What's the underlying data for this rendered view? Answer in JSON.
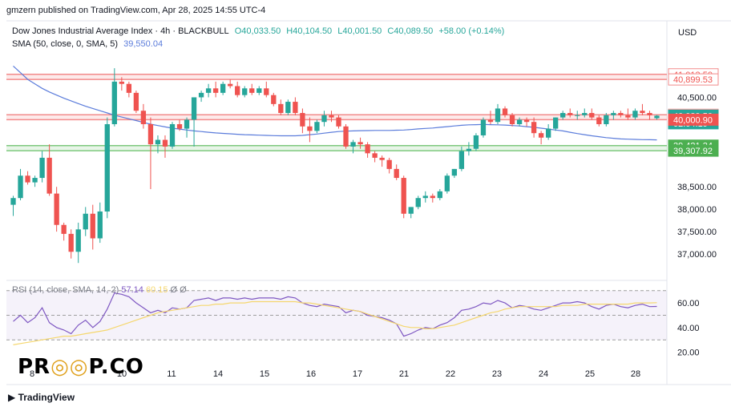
{
  "header": {
    "published": "gmzern published on TradingView.com, Apr 28, 2025 14:55 UTC-4",
    "symbol_line": "Dow Jones Industrial Average Index · 4h · BLACKBULL",
    "ohlc": {
      "o": "O40,033.50",
      "h": "H40,104.50",
      "l": "L40,001.50",
      "c": "C40,089.50",
      "chg": "+58.00 (+0.14%)"
    },
    "sma_line": "SMA (50, close, 0, SMA, 5)",
    "sma_value": "39,550.04",
    "currency": "USD"
  },
  "rsi_legend": {
    "label": "RSI (14, close, SMA, 14, 2)",
    "rsi": "57.14",
    "sma": "60.15",
    "extra": "Ø Ø"
  },
  "footer": {
    "tv": "TradingView",
    "brand_left": "PR",
    "brand_right": "P.CO"
  },
  "colors": {
    "up": "#26a69a",
    "down": "#ef5350",
    "sma": "#5b7cdb",
    "red_zone": "#f28b8b",
    "green_zone": "#7fc97f",
    "rsi": "#7e57c2",
    "rsi_sma": "#f5d76e"
  },
  "chart_data": [
    {
      "type": "candlestick",
      "title": "Dow Jones Industrial Average Index · 4h",
      "ylim": [
        36500,
        41600
      ],
      "y_ticks": [
        "37,000.00",
        "37,500.00",
        "38,000.00",
        "38,500.00",
        "40,500.00"
      ],
      "x_ticks": [
        "8",
        "10",
        "11",
        "14",
        "15",
        "16",
        "17",
        "21",
        "22",
        "23",
        "24",
        "25",
        "28"
      ],
      "price_labels": [
        {
          "text": "41,013.50",
          "value": 41013.5,
          "kind": "red"
        },
        {
          "text": "40,899.53",
          "value": 40899.53,
          "kind": "red"
        },
        {
          "text": "40,109.80",
          "value": 40109.8,
          "kind": "red"
        },
        {
          "text": "40,089.50",
          "value": 40089.5,
          "kind": "current"
        },
        {
          "text": "02:04:19",
          "value": 39920,
          "kind": "current-time"
        },
        {
          "text": "40,000.90",
          "value": 40000.9,
          "kind": "red-solid"
        },
        {
          "text": "39,421.34",
          "value": 39421.34,
          "kind": "green"
        },
        {
          "text": "39,307.92",
          "value": 39307.92,
          "kind": "green"
        }
      ],
      "zones": [
        {
          "from": 40899.53,
          "to": 41013.5,
          "color": "red"
        },
        {
          "from": 40000.9,
          "to": 40109.8,
          "color": "red"
        },
        {
          "from": 39307.92,
          "to": 39421.34,
          "color": "green"
        }
      ],
      "candles": [
        [
          38100,
          38300,
          37850,
          38250
        ],
        [
          38250,
          38900,
          38200,
          38750
        ],
        [
          38750,
          38850,
          38550,
          38600
        ],
        [
          38600,
          38750,
          38500,
          38700
        ],
        [
          38700,
          39300,
          38600,
          39150
        ],
        [
          39150,
          39450,
          38300,
          38350
        ],
        [
          38350,
          38500,
          37500,
          37650
        ],
        [
          37650,
          37700,
          37300,
          37450
        ],
        [
          37450,
          37550,
          36900,
          37050
        ],
        [
          37050,
          37700,
          36800,
          37550
        ],
        [
          37550,
          38050,
          37400,
          37900
        ],
        [
          37900,
          38100,
          37100,
          37350
        ],
        [
          37350,
          38150,
          37250,
          37950
        ],
        [
          37950,
          40050,
          37800,
          39900
        ],
        [
          39900,
          41150,
          39850,
          40850
        ],
        [
          40850,
          40950,
          40650,
          40800
        ],
        [
          40800,
          40850,
          40500,
          40600
        ],
        [
          40600,
          40650,
          40150,
          40200
        ],
        [
          40200,
          40350,
          39800,
          39900
        ],
        [
          39900,
          40050,
          38450,
          39450
        ],
        [
          39450,
          39650,
          39250,
          39550
        ],
        [
          39550,
          39650,
          39150,
          39400
        ],
        [
          39400,
          39950,
          39350,
          39900
        ],
        [
          39900,
          40000,
          39750,
          39800
        ],
        [
          39800,
          40050,
          39600,
          40000
        ],
        [
          40000,
          40500,
          39400,
          40500
        ],
        [
          40500,
          40650,
          40400,
          40600
        ],
        [
          40600,
          40800,
          40500,
          40700
        ],
        [
          40700,
          40850,
          40500,
          40600
        ],
        [
          40600,
          40850,
          40550,
          40800
        ],
        [
          40800,
          40900,
          40700,
          40750
        ],
        [
          40750,
          40850,
          40500,
          40550
        ],
        [
          40550,
          40750,
          40500,
          40700
        ],
        [
          40700,
          40800,
          40550,
          40600
        ],
        [
          40600,
          40750,
          40550,
          40700
        ],
        [
          40700,
          40850,
          40500,
          40550
        ],
        [
          40550,
          40600,
          40300,
          40350
        ],
        [
          40350,
          40450,
          40100,
          40150
        ],
        [
          40150,
          40450,
          40100,
          40400
        ],
        [
          40400,
          40500,
          40100,
          40150
        ],
        [
          40150,
          40250,
          39700,
          39850
        ],
        [
          39850,
          40050,
          39500,
          39750
        ],
        [
          39750,
          40000,
          39700,
          39950
        ],
        [
          39950,
          40200,
          39850,
          40100
        ],
        [
          40100,
          40200,
          39950,
          40050
        ],
        [
          40050,
          40100,
          39800,
          39850
        ],
        [
          39850,
          39900,
          39350,
          39400
        ],
        [
          39400,
          39550,
          39250,
          39500
        ],
        [
          39500,
          39600,
          39350,
          39450
        ],
        [
          39450,
          39500,
          39150,
          39250
        ],
        [
          39250,
          39300,
          39050,
          39150
        ],
        [
          39150,
          39200,
          38950,
          39100
        ],
        [
          39100,
          39150,
          38800,
          38900
        ],
        [
          38900,
          39000,
          38650,
          38700
        ],
        [
          38700,
          38750,
          37800,
          37900
        ],
        [
          37900,
          38050,
          37800,
          38050
        ],
        [
          38050,
          38300,
          38000,
          38250
        ],
        [
          38250,
          38400,
          38150,
          38300
        ],
        [
          38300,
          38350,
          38150,
          38250
        ],
        [
          38250,
          38450,
          38200,
          38400
        ],
        [
          38400,
          38800,
          38350,
          38750
        ],
        [
          38750,
          38900,
          38700,
          38900
        ],
        [
          38900,
          39400,
          38850,
          39300
        ],
        [
          39300,
          39500,
          39200,
          39350
        ],
        [
          39350,
          39700,
          39300,
          39650
        ],
        [
          39650,
          40050,
          39600,
          40000
        ],
        [
          40000,
          40200,
          39900,
          39950
        ],
        [
          39950,
          40350,
          39900,
          40250
        ],
        [
          40250,
          40300,
          40050,
          40100
        ],
        [
          40100,
          40150,
          39850,
          39900
        ],
        [
          39900,
          40050,
          39850,
          40000
        ],
        [
          40000,
          40050,
          39850,
          39950
        ],
        [
          39950,
          40050,
          39600,
          39700
        ],
        [
          39700,
          39750,
          39450,
          39600
        ],
        [
          39600,
          39900,
          39550,
          39800
        ],
        [
          39800,
          40050,
          39750,
          40050
        ],
        [
          40050,
          40200,
          40000,
          40150
        ],
        [
          40150,
          40250,
          40050,
          40100
        ],
        [
          40100,
          40200,
          40000,
          40100
        ],
        [
          40100,
          40250,
          40050,
          40150
        ],
        [
          40150,
          40250,
          40000,
          40050
        ],
        [
          40050,
          40100,
          39850,
          39900
        ],
        [
          39900,
          40150,
          39850,
          40100
        ],
        [
          40100,
          40200,
          40000,
          40150
        ],
        [
          40150,
          40200,
          40050,
          40100
        ],
        [
          40100,
          40250,
          40000,
          40050
        ],
        [
          40050,
          40250,
          40000,
          40200
        ],
        [
          40200,
          40350,
          40100,
          40150
        ],
        [
          40150,
          40200,
          40000,
          40100
        ],
        [
          40033.5,
          40104.5,
          40001.5,
          40089.5
        ]
      ],
      "sma50": [
        41200,
        41050,
        40900,
        40800,
        40700,
        40620,
        40550,
        40480,
        40420,
        40360,
        40300,
        40250,
        40200,
        40150,
        40100,
        40060,
        40020,
        39980,
        39940,
        39900,
        39870,
        39840,
        39810,
        39790,
        39770,
        39750,
        39735,
        39720,
        39705,
        39695,
        39685,
        39675,
        39665,
        39660,
        39655,
        39650,
        39645,
        39640,
        39640,
        39640,
        39650,
        39665,
        39680,
        39700,
        39720,
        39735,
        39745,
        39750,
        39755,
        39757,
        39760,
        39760,
        39760,
        39765,
        39770,
        39780,
        39795,
        39805,
        39815,
        39830,
        39845,
        39860,
        39875,
        39885,
        39890,
        39895,
        39890,
        39885,
        39880,
        39870,
        39860,
        39845,
        39830,
        39810,
        39790,
        39770,
        39750,
        39720,
        39690,
        39665,
        39640,
        39620,
        39600,
        39585,
        39570,
        39565,
        39560,
        39555,
        39552,
        39550
      ]
    },
    {
      "type": "line",
      "title": "RSI (14, close, SMA, 14, 2)",
      "ylim": [
        10,
        75
      ],
      "y_ticks": [
        "60.00",
        "40.00",
        "20.00"
      ],
      "bands": [
        30,
        50,
        70
      ],
      "series": [
        {
          "name": "RSI",
          "values": [
            45,
            50,
            44,
            48,
            56,
            44,
            40,
            38,
            35,
            42,
            46,
            40,
            45,
            55,
            68,
            67,
            65,
            60,
            56,
            52,
            54,
            52,
            56,
            55,
            56,
            62,
            63,
            64,
            62,
            64,
            64,
            63,
            64,
            63,
            64,
            64,
            64,
            63,
            65,
            64,
            60,
            58,
            57,
            59,
            58,
            57,
            52,
            54,
            53,
            50,
            49,
            48,
            46,
            43,
            33,
            35,
            38,
            40,
            39,
            42,
            44,
            48,
            54,
            55,
            57,
            60,
            59,
            62,
            60,
            56,
            58,
            57,
            55,
            54,
            56,
            58,
            60,
            60,
            61,
            60,
            57,
            55,
            58,
            59,
            57,
            56,
            58,
            59,
            57,
            57.14
          ]
        },
        {
          "name": "RSI SMA",
          "values": [
            26,
            27,
            28,
            29,
            30,
            31,
            32,
            33,
            33,
            34,
            35,
            36,
            37,
            38,
            40,
            42,
            44,
            46,
            48,
            50,
            52,
            53,
            54,
            55,
            56,
            57,
            58,
            58,
            59,
            59,
            60,
            60,
            60,
            61,
            61,
            61,
            61,
            61,
            61,
            61,
            60,
            60,
            59,
            58,
            57,
            56,
            55,
            54,
            53,
            51,
            49,
            47,
            45,
            43,
            41,
            40,
            40,
            39,
            39,
            40,
            41,
            42,
            44,
            46,
            48,
            50,
            52,
            53,
            55,
            56,
            57,
            57,
            57,
            57,
            57,
            57,
            58,
            58,
            58,
            59,
            59,
            59,
            59,
            59,
            59,
            59,
            60,
            60,
            60,
            60.15
          ]
        }
      ]
    }
  ]
}
